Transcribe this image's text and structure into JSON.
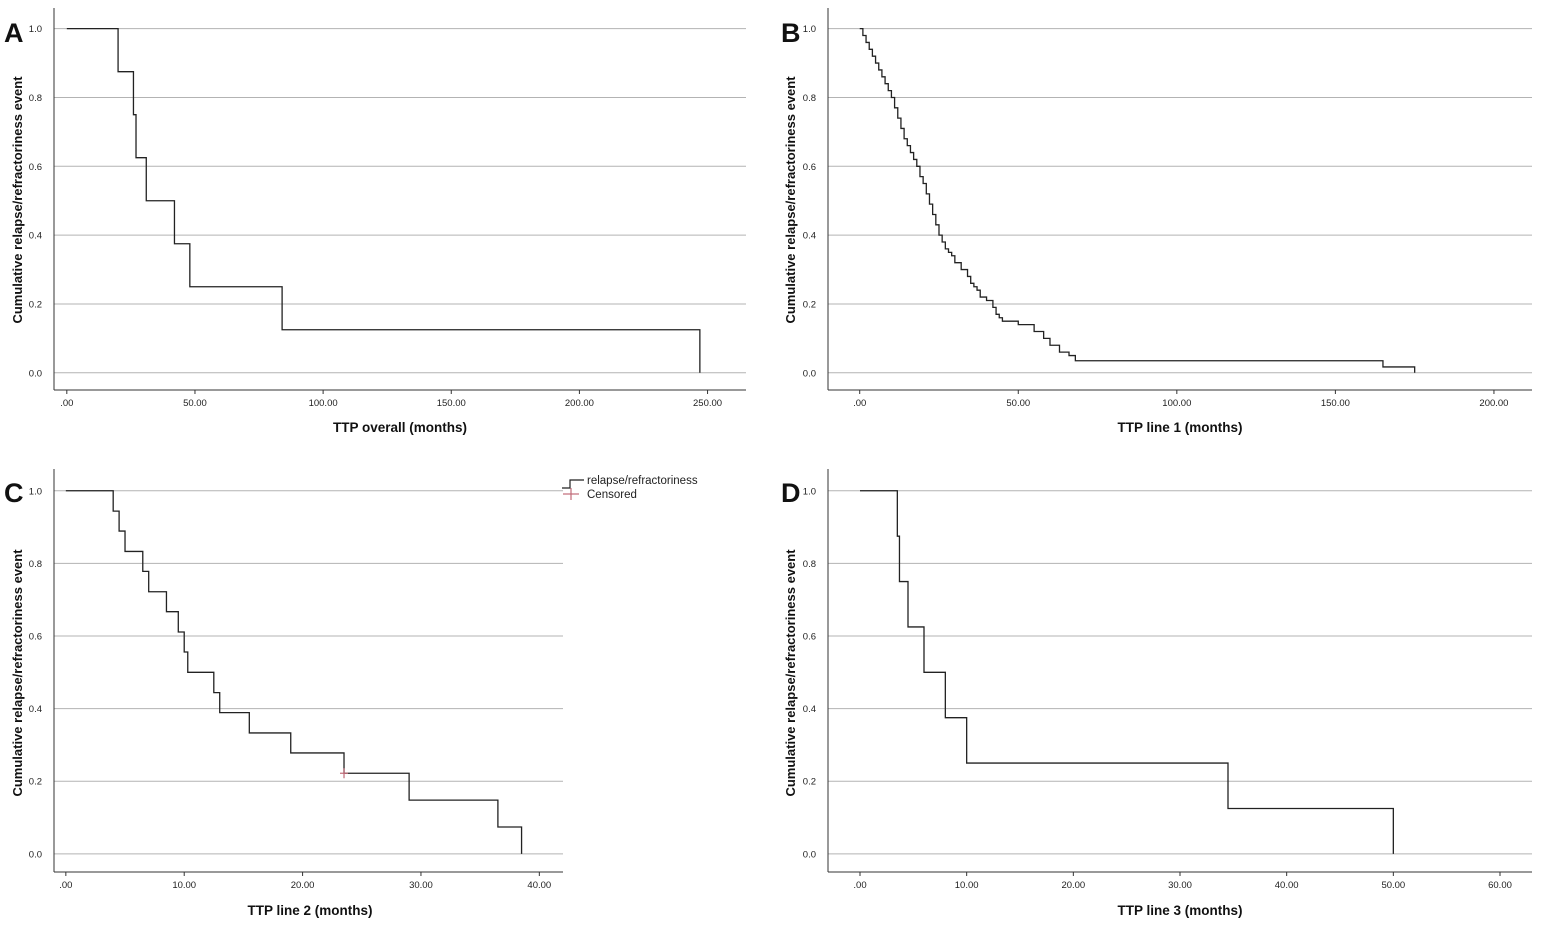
{
  "chart_data": [
    {
      "panel": "A",
      "type": "line",
      "style": "kaplan-meier-step",
      "xlabel": "TTP overall (months)",
      "ylabel": "Cumulative relapse/refractoriness event",
      "xlim": [
        -5,
        265
      ],
      "ylim": [
        -0.05,
        1.06
      ],
      "x_ticks": [
        0,
        50,
        100,
        150,
        200,
        250
      ],
      "x_tick_labels": [
        ".00",
        "50.00",
        "100.00",
        "150.00",
        "200.00",
        "250.00"
      ],
      "y_ticks": [
        0,
        0.2,
        0.4,
        0.6,
        0.8,
        1.0
      ],
      "y_tick_labels": [
        "0.0",
        "0.2",
        "0.4",
        "0.6",
        "0.8",
        "1.0"
      ],
      "grid": true,
      "series": [
        {
          "name": "relapse/refractoriness",
          "color": "#222222",
          "x": [
            0,
            20,
            26,
            27,
            31,
            42,
            48,
            84,
            247
          ],
          "y": [
            1.0,
            0.875,
            0.75,
            0.625,
            0.5,
            0.375,
            0.25,
            0.125,
            0.0
          ]
        }
      ],
      "censored": []
    },
    {
      "panel": "B",
      "type": "line",
      "style": "kaplan-meier-step",
      "xlabel": "TTP line 1 (months)",
      "ylabel": "Cumulative relapse/refractoriness event",
      "xlim": [
        -10,
        212
      ],
      "ylim": [
        -0.05,
        1.06
      ],
      "x_ticks": [
        0,
        50,
        100,
        150,
        200
      ],
      "x_tick_labels": [
        ".00",
        "50.00",
        "100.00",
        "150.00",
        "200.00"
      ],
      "y_ticks": [
        0,
        0.2,
        0.4,
        0.6,
        0.8,
        1.0
      ],
      "y_tick_labels": [
        "0.0",
        "0.2",
        "0.4",
        "0.6",
        "0.8",
        "1.0"
      ],
      "grid": true,
      "series": [
        {
          "name": "relapse/refractoriness",
          "color": "#222222",
          "x": [
            0,
            1,
            2,
            3,
            4,
            5,
            6,
            7,
            8,
            9,
            10,
            11,
            12,
            13,
            14,
            15,
            16,
            17,
            18,
            19,
            20,
            21,
            22,
            23,
            24,
            25,
            26,
            27,
            28,
            29,
            30,
            32,
            34,
            35,
            36,
            37,
            38,
            40,
            42,
            43,
            44,
            45,
            50,
            55,
            58,
            60,
            63,
            66,
            68,
            165,
            175
          ],
          "y": [
            1.0,
            0.98,
            0.96,
            0.94,
            0.92,
            0.9,
            0.88,
            0.86,
            0.84,
            0.82,
            0.8,
            0.77,
            0.74,
            0.71,
            0.68,
            0.66,
            0.64,
            0.62,
            0.6,
            0.57,
            0.55,
            0.52,
            0.49,
            0.46,
            0.43,
            0.4,
            0.38,
            0.36,
            0.35,
            0.34,
            0.32,
            0.3,
            0.28,
            0.26,
            0.25,
            0.24,
            0.22,
            0.21,
            0.19,
            0.17,
            0.16,
            0.15,
            0.14,
            0.12,
            0.1,
            0.08,
            0.06,
            0.05,
            0.035,
            0.017,
            0.0
          ]
        }
      ],
      "censored": []
    },
    {
      "panel": "C",
      "type": "line",
      "style": "kaplan-meier-step",
      "xlabel": "TTP line 2 (months)",
      "ylabel": "Cumulative relapse/refractoriness event",
      "xlim": [
        -1,
        42
      ],
      "ylim": [
        -0.05,
        1.06
      ],
      "x_ticks": [
        0,
        10,
        20,
        30,
        40
      ],
      "x_tick_labels": [
        ".00",
        "10.00",
        "20.00",
        "30.00",
        "40.00"
      ],
      "y_ticks": [
        0,
        0.2,
        0.4,
        0.6,
        0.8,
        1.0
      ],
      "y_tick_labels": [
        "0.0",
        "0.2",
        "0.4",
        "0.6",
        "0.8",
        "1.0"
      ],
      "grid": true,
      "legend": {
        "position": "top-right",
        "items": [
          {
            "label": "relapse/refractoriness",
            "color": "#222222",
            "symbol": "step-line"
          },
          {
            "label": "Censored",
            "color": "#c06a78",
            "symbol": "plus"
          }
        ]
      },
      "series": [
        {
          "name": "relapse/refractoriness",
          "color": "#222222",
          "x": [
            0,
            4,
            4.5,
            5,
            6.5,
            7,
            8.5,
            9.5,
            10,
            10.3,
            12.5,
            13,
            15.5,
            19,
            23.5,
            29,
            36.5,
            38.5
          ],
          "y": [
            1.0,
            0.944,
            0.889,
            0.833,
            0.778,
            0.722,
            0.667,
            0.611,
            0.556,
            0.5,
            0.444,
            0.389,
            0.333,
            0.278,
            0.222,
            0.148,
            0.074,
            0.0
          ]
        }
      ],
      "censored": [
        {
          "x": 23.5,
          "y": 0.222
        }
      ]
    },
    {
      "panel": "D",
      "type": "line",
      "style": "kaplan-meier-step",
      "xlabel": "TTP line 3 (months)",
      "ylabel": "Cumulative relapse/refractoriness event",
      "xlim": [
        -3,
        63
      ],
      "ylim": [
        -0.05,
        1.06
      ],
      "x_ticks": [
        0,
        10,
        20,
        30,
        40,
        50,
        60
      ],
      "x_tick_labels": [
        ".00",
        "10.00",
        "20.00",
        "30.00",
        "40.00",
        "50.00",
        "60.00"
      ],
      "y_ticks": [
        0,
        0.2,
        0.4,
        0.6,
        0.8,
        1.0
      ],
      "y_tick_labels": [
        "0.0",
        "0.2",
        "0.4",
        "0.6",
        "0.8",
        "1.0"
      ],
      "grid": true,
      "series": [
        {
          "name": "relapse/refractoriness",
          "color": "#222222",
          "x": [
            0,
            3.5,
            3.7,
            4.5,
            6,
            8,
            10,
            34.5,
            50
          ],
          "y": [
            1.0,
            0.875,
            0.75,
            0.625,
            0.5,
            0.375,
            0.25,
            0.125,
            0.0
          ]
        }
      ],
      "censored": []
    }
  ]
}
